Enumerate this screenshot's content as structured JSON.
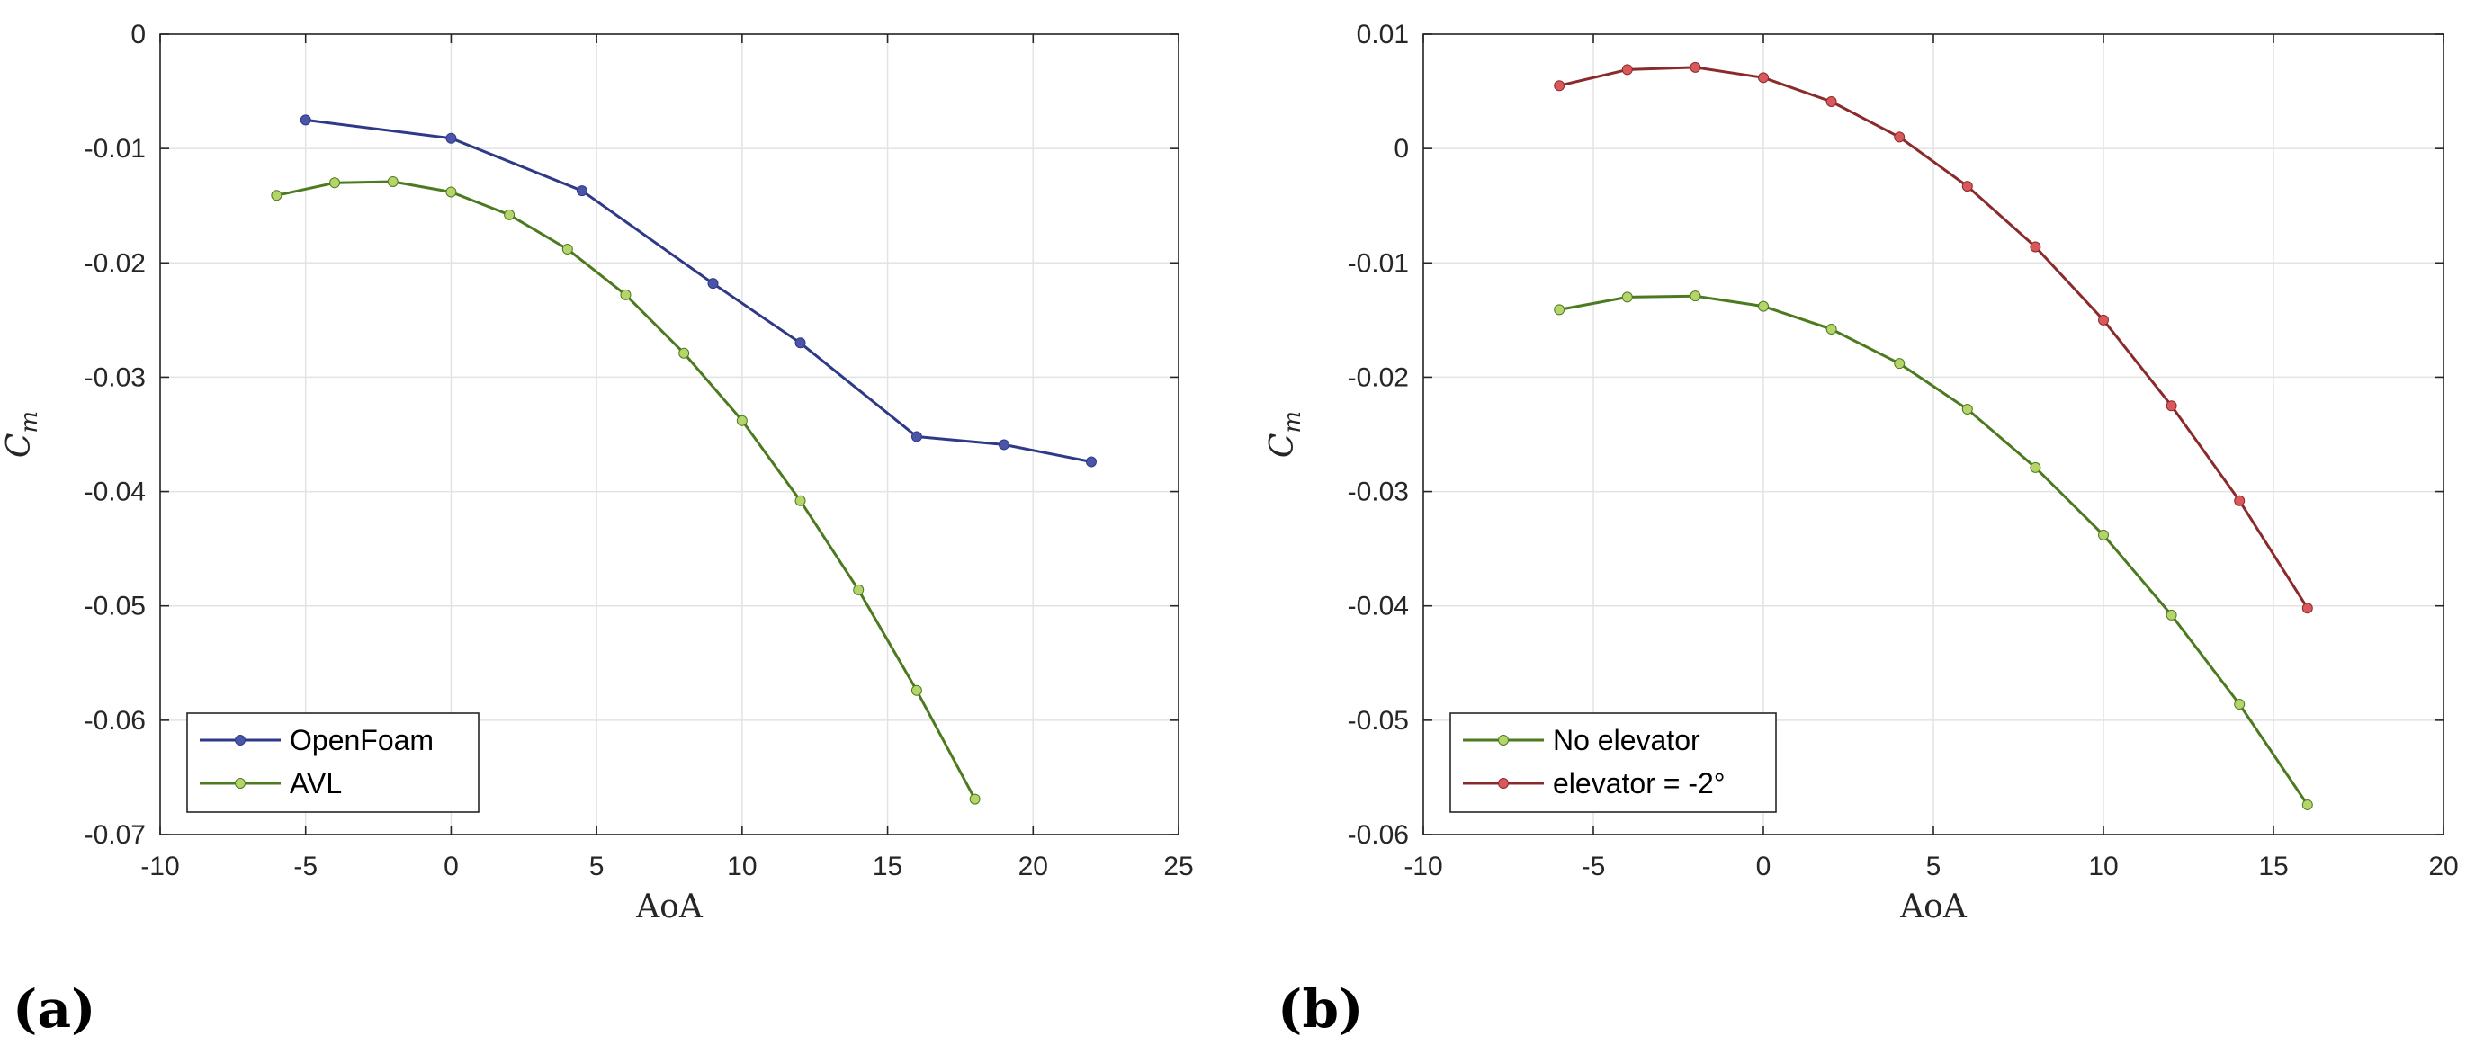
{
  "chart_data": [
    {
      "type": "line",
      "panel_label": "(a)",
      "xlabel": "AoA",
      "ylabel": "Cm",
      "ylabel_main": "C",
      "ylabel_sub": "m",
      "xlim": [
        -10,
        25
      ],
      "ylim": [
        -0.07,
        0
      ],
      "xticks": [
        -10,
        -5,
        0,
        5,
        10,
        15,
        20,
        25
      ],
      "xtick_labels": [
        "-10",
        "-5",
        "0",
        "5",
        "10",
        "15",
        "20",
        "25"
      ],
      "yticks": [
        0,
        -0.01,
        -0.02,
        -0.03,
        -0.04,
        -0.05,
        -0.06,
        -0.07
      ],
      "ytick_labels": [
        "0",
        "-0.01",
        "-0.02",
        "-0.03",
        "-0.04",
        "-0.05",
        "-0.06",
        "-0.07"
      ],
      "grid": true,
      "legend_position": "bottom-left",
      "series": [
        {
          "name": "OpenFoam",
          "color": "#2e3a87",
          "marker_color": "#4a55a8",
          "x": [
            -5,
            0,
            4.5,
            9,
            12,
            16,
            19,
            22
          ],
          "y": [
            -0.0075,
            -0.0091,
            -0.0137,
            -0.0218,
            -0.027,
            -0.0352,
            -0.0359,
            -0.0374
          ]
        },
        {
          "name": "AVL",
          "color": "#4b7a1f",
          "marker_color": "#b5d56a",
          "x": [
            -6,
            -4,
            -2,
            0,
            2,
            4,
            6,
            8,
            10,
            12,
            14,
            16,
            18
          ],
          "y": [
            -0.0141,
            -0.013,
            -0.0129,
            -0.0138,
            -0.0158,
            -0.0188,
            -0.0228,
            -0.0279,
            -0.0338,
            -0.0408,
            -0.0486,
            -0.0574,
            -0.0669
          ]
        }
      ]
    },
    {
      "type": "line",
      "panel_label": "(b)",
      "xlabel": "AoA",
      "ylabel": "Cm",
      "ylabel_main": "C",
      "ylabel_sub": "m",
      "xlim": [
        -10,
        20
      ],
      "ylim": [
        -0.06,
        0.01
      ],
      "xticks": [
        -10,
        -5,
        0,
        5,
        10,
        15,
        20
      ],
      "xtick_labels": [
        "-10",
        "-5",
        "0",
        "5",
        "10",
        "15",
        "20"
      ],
      "yticks": [
        0.01,
        0,
        -0.01,
        -0.02,
        -0.03,
        -0.04,
        -0.05,
        -0.06
      ],
      "ytick_labels": [
        "0.01",
        "0",
        "-0.01",
        "-0.02",
        "-0.03",
        "-0.04",
        "-0.05",
        "-0.06"
      ],
      "grid": true,
      "legend_position": "bottom-left",
      "series": [
        {
          "name": "No elevator",
          "color": "#4b7a1f",
          "marker_color": "#b5d56a",
          "x": [
            -6,
            -4,
            -2,
            0,
            2,
            4,
            6,
            8,
            10,
            12,
            14,
            16
          ],
          "y": [
            -0.0141,
            -0.013,
            -0.0129,
            -0.0138,
            -0.0158,
            -0.0188,
            -0.0228,
            -0.0279,
            -0.0338,
            -0.0408,
            -0.0486,
            -0.0574
          ]
        },
        {
          "name": "elevator = -2°",
          "color": "#8b2a2a",
          "marker_color": "#d9585c",
          "x": [
            -6,
            -4,
            -2,
            0,
            2,
            4,
            6,
            8,
            10,
            12,
            14,
            16
          ],
          "y": [
            0.0055,
            0.0069,
            0.0071,
            0.0062,
            0.0041,
            0.001,
            -0.0033,
            -0.0086,
            -0.015,
            -0.0225,
            -0.0308,
            -0.0402
          ]
        }
      ]
    }
  ]
}
